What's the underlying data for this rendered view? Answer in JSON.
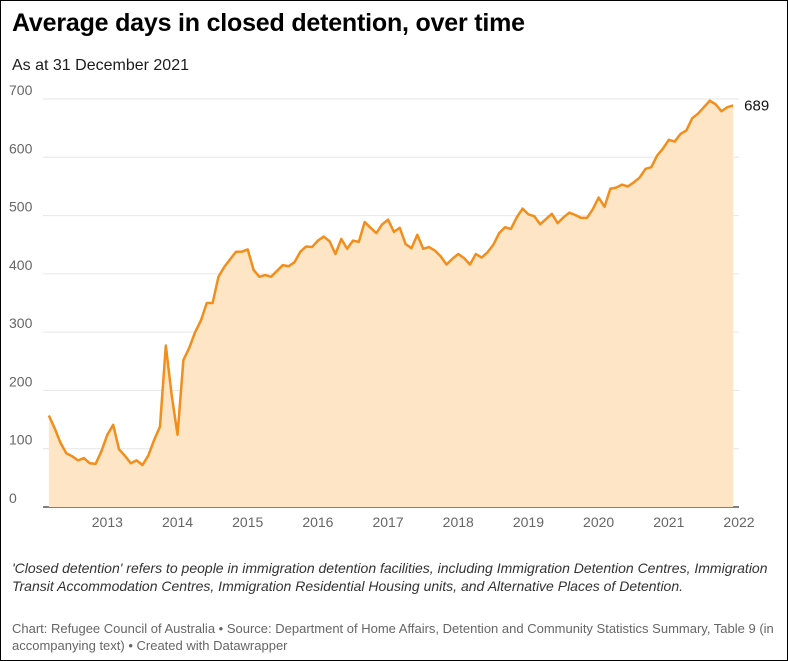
{
  "title": "Average days in closed detention, over time",
  "subtitle": "As at 31 December 2021",
  "note": "'Closed detention' refers to people in immigration detention facilities, including Immigration Detention Centres, Immigration Transit Accommodation Centres, Immigration Residential Housing units, and Alternative Places of Detention.",
  "credits": "Chart: Refugee Council of Australia • Source: Department of Home Affairs, Detention and Community Statistics Summary, Table 9 (in accompanying text) • Created with Datawrapper",
  "colors": {
    "line": "#f28e1c",
    "area": "#fde5c5",
    "grid": "#e6e6e6",
    "axis": "#333333"
  },
  "chart_data": {
    "type": "area",
    "title": "Average days in closed detention, over time",
    "subtitle": "As at 31 December 2021",
    "xlabel": "",
    "ylabel": "",
    "xlim": [
      "2012-02-01",
      "2022-01-01"
    ],
    "ylim": [
      0,
      700
    ],
    "yticks": [
      0,
      100,
      200,
      300,
      400,
      500,
      600,
      700
    ],
    "ytick_labels": [
      "0",
      "100",
      "200",
      "300",
      "400",
      "500",
      "600",
      "700"
    ],
    "xticks": [
      "2013-01-01",
      "2014-01-01",
      "2015-01-01",
      "2016-01-01",
      "2017-01-01",
      "2018-01-01",
      "2019-01-01",
      "2020-01-01",
      "2021-01-01",
      "2022-01-01"
    ],
    "xtick_labels": [
      "2013",
      "2014",
      "2015",
      "2016",
      "2017",
      "2018",
      "2019",
      "2020",
      "2021",
      "2022"
    ],
    "grid": true,
    "end_label": "689",
    "series": [
      {
        "x": [
          "2012-03",
          "2012-04",
          "2012-05",
          "2012-06",
          "2012-07",
          "2012-08",
          "2012-09",
          "2012-10",
          "2012-11",
          "2012-12",
          "2013-01",
          "2013-02",
          "2013-03",
          "2013-04",
          "2013-05",
          "2013-06",
          "2013-07",
          "2013-08",
          "2013-09",
          "2013-10",
          "2013-11",
          "2013-12",
          "2014-01",
          "2014-02",
          "2014-03",
          "2014-04",
          "2014-05",
          "2014-06",
          "2014-07",
          "2014-08",
          "2014-09",
          "2014-10",
          "2014-11",
          "2014-12",
          "2015-01",
          "2015-02",
          "2015-03",
          "2015-04",
          "2015-05",
          "2015-06",
          "2015-07",
          "2015-08",
          "2015-09",
          "2015-10",
          "2015-11",
          "2015-12",
          "2016-01",
          "2016-02",
          "2016-03",
          "2016-04",
          "2016-05",
          "2016-06",
          "2016-07",
          "2016-08",
          "2016-09",
          "2016-10",
          "2016-11",
          "2016-12",
          "2017-01",
          "2017-02",
          "2017-03",
          "2017-04",
          "2017-05",
          "2017-06",
          "2017-07",
          "2017-08",
          "2017-09",
          "2017-10",
          "2017-11",
          "2017-12",
          "2018-01",
          "2018-02",
          "2018-03",
          "2018-04",
          "2018-05",
          "2018-06",
          "2018-07",
          "2018-08",
          "2018-09",
          "2018-10",
          "2018-11",
          "2018-12",
          "2019-01",
          "2019-02",
          "2019-03",
          "2019-04",
          "2019-05",
          "2019-06",
          "2019-07",
          "2019-08",
          "2019-09",
          "2019-10",
          "2019-11",
          "2019-12",
          "2020-01",
          "2020-02",
          "2020-03",
          "2020-04",
          "2020-05",
          "2020-06",
          "2020-07",
          "2020-08",
          "2020-09",
          "2020-10",
          "2020-11",
          "2020-12",
          "2021-01",
          "2021-02",
          "2021-03",
          "2021-04",
          "2021-05",
          "2021-06",
          "2021-07",
          "2021-08",
          "2021-09",
          "2021-10",
          "2021-11",
          "2021-12"
        ],
        "values": [
          157,
          135,
          110,
          92,
          87,
          80,
          84,
          75,
          74,
          96,
          124,
          141,
          99,
          88,
          75,
          80,
          72,
          88,
          115,
          138,
          277,
          192,
          124,
          252,
          273,
          300,
          320,
          350,
          350,
          395,
          412,
          425,
          438,
          438,
          442,
          407,
          395,
          398,
          395,
          405,
          415,
          413,
          420,
          438,
          447,
          446,
          457,
          464,
          456,
          434,
          460,
          443,
          457,
          455,
          489,
          479,
          470,
          485,
          493,
          472,
          479,
          451,
          444,
          467,
          443,
          446,
          440,
          430,
          416,
          426,
          434,
          427,
          416,
          434,
          428,
          437,
          450,
          470,
          480,
          477,
          497,
          512,
          502,
          499,
          485,
          494,
          503,
          487,
          497,
          505,
          501,
          496,
          496,
          511,
          531,
          515,
          546,
          548,
          553,
          550,
          557,
          565,
          580,
          583,
          603,
          615,
          630,
          627,
          640,
          646,
          667,
          675,
          686,
          697,
          691,
          679,
          686,
          689
        ]
      }
    ]
  }
}
